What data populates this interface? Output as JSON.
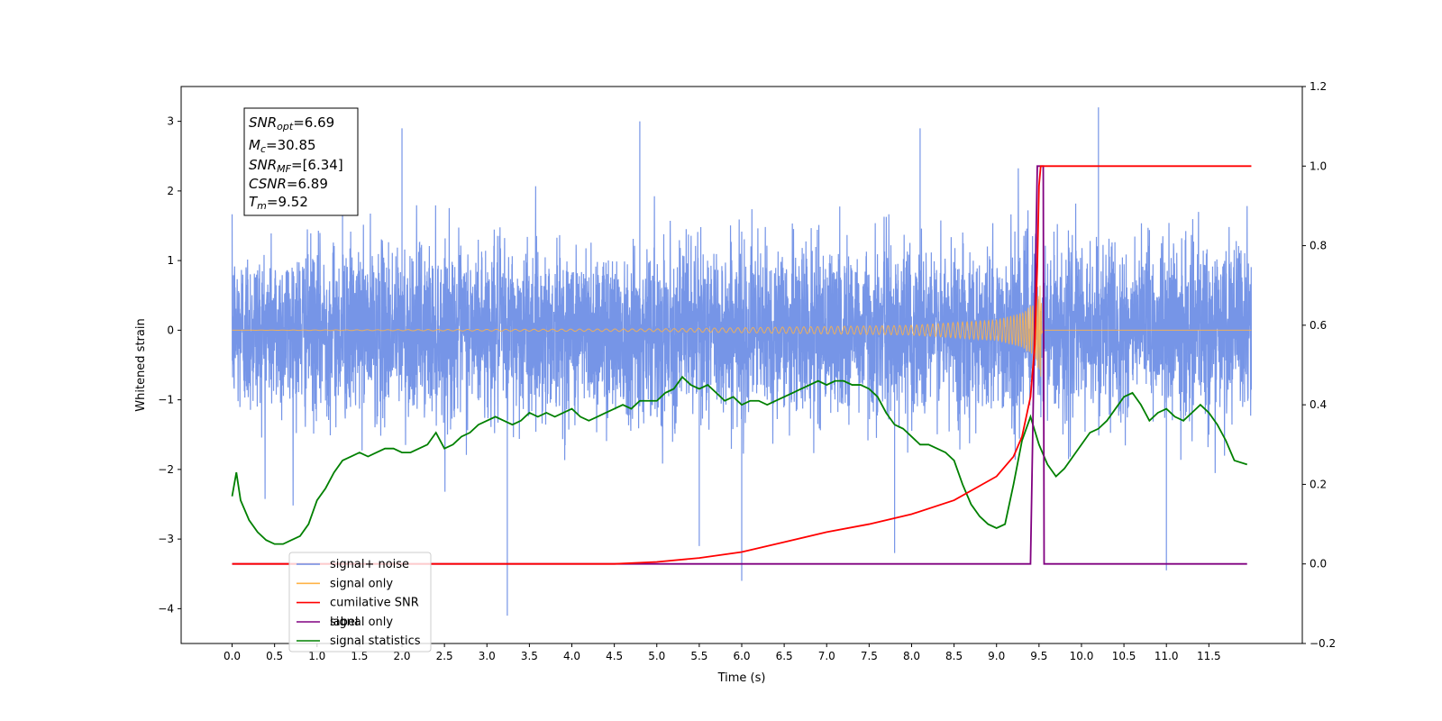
{
  "chart_data": {
    "type": "line",
    "xlabel": "Time (s)",
    "ylabel": "Whitened strain",
    "xlim": [
      -0.6,
      12.6
    ],
    "ylim": [
      -4.5,
      3.5
    ],
    "y2lim": [
      -0.2,
      1.2
    ],
    "x_ticks": [
      "0.0",
      "0.5",
      "1.0",
      "1.5",
      "2.0",
      "2.5",
      "3.0",
      "3.5",
      "4.0",
      "4.5",
      "5.0",
      "5.5",
      "6.0",
      "6.5",
      "7.0",
      "7.5",
      "8.0",
      "8.5",
      "9.0",
      "9.5",
      "10.0",
      "10.5",
      "11.0",
      "11.5"
    ],
    "y_ticks": [
      "3",
      "2",
      "1",
      "0",
      "−1",
      "−2",
      "−3",
      "−4"
    ],
    "y2_ticks": [
      "1.2",
      "1.0",
      "0.8",
      "0.6",
      "0.4",
      "0.2",
      "0.0",
      "−0.2"
    ],
    "legend_position": "lower-left",
    "series": [
      {
        "name": "signal+ noise",
        "color": "#6f8fe6",
        "axis": "left",
        "x_range": [
          0.0,
          12.0
        ],
        "typical_envelope": [
          -1.3,
          1.5
        ],
        "peaks": [
          3.2,
          -4.1
        ]
      },
      {
        "name": "signal only",
        "color": "#ffb347",
        "axis": "left",
        "x": [
          0.0,
          5.0,
          8.0,
          9.0,
          9.3,
          9.45,
          9.5,
          9.52,
          9.55,
          12.0
        ],
        "amplitude": [
          0.0,
          0.02,
          0.07,
          0.15,
          0.25,
          0.4,
          0.6,
          0.7,
          0.0,
          0.0
        ]
      },
      {
        "name": "cumilative SNR",
        "color": "#ff0000",
        "axis": "right",
        "x": [
          0.0,
          4.5,
          5.0,
          5.5,
          6.0,
          6.5,
          7.0,
          7.5,
          8.0,
          8.5,
          9.0,
          9.2,
          9.3,
          9.4,
          9.45,
          9.48,
          9.5,
          9.52,
          12.0
        ],
        "values": [
          0.0,
          0.0,
          0.005,
          0.015,
          0.03,
          0.055,
          0.08,
          0.1,
          0.125,
          0.16,
          0.22,
          0.27,
          0.32,
          0.42,
          0.55,
          0.75,
          0.95,
          1.0,
          1.0
        ]
      },
      {
        "name": "label",
        "color": "#800080",
        "axis": "right",
        "x": [
          0.0,
          9.4,
          9.48,
          9.55,
          9.56,
          11.95
        ],
        "values": [
          0.0,
          0.0,
          1.0,
          1.0,
          0.0,
          0.0
        ]
      },
      {
        "name": "signal only",
        "color": "#cccccc",
        "axis": "left",
        "hidden": true
      },
      {
        "name": "signal statistics",
        "color": "#008000",
        "axis": "right",
        "x": [
          0.0,
          0.05,
          0.1,
          0.2,
          0.3,
          0.4,
          0.5,
          0.6,
          0.7,
          0.8,
          0.9,
          1.0,
          1.1,
          1.2,
          1.3,
          1.4,
          1.5,
          1.6,
          1.7,
          1.8,
          1.9,
          2.0,
          2.1,
          2.2,
          2.3,
          2.4,
          2.5,
          2.6,
          2.7,
          2.8,
          2.9,
          3.0,
          3.1,
          3.2,
          3.3,
          3.4,
          3.5,
          3.6,
          3.7,
          3.8,
          3.9,
          4.0,
          4.1,
          4.2,
          4.3,
          4.4,
          4.5,
          4.6,
          4.7,
          4.8,
          4.9,
          5.0,
          5.1,
          5.2,
          5.3,
          5.4,
          5.5,
          5.6,
          5.7,
          5.8,
          5.9,
          6.0,
          6.1,
          6.2,
          6.3,
          6.4,
          6.5,
          6.6,
          6.7,
          6.8,
          6.9,
          7.0,
          7.1,
          7.2,
          7.3,
          7.4,
          7.5,
          7.6,
          7.7,
          7.8,
          7.9,
          8.0,
          8.1,
          8.2,
          8.3,
          8.4,
          8.5,
          8.6,
          8.7,
          8.8,
          8.9,
          9.0,
          9.1,
          9.2,
          9.3,
          9.4,
          9.5,
          9.6,
          9.7,
          9.8,
          9.9,
          10.0,
          10.1,
          10.2,
          10.3,
          10.4,
          10.5,
          10.6,
          10.7,
          10.8,
          10.9,
          11.0,
          11.1,
          11.2,
          11.3,
          11.4,
          11.5,
          11.6,
          11.7,
          11.8,
          11.95
        ],
        "values": [
          0.17,
          0.23,
          0.16,
          0.11,
          0.08,
          0.06,
          0.05,
          0.05,
          0.06,
          0.07,
          0.1,
          0.16,
          0.19,
          0.23,
          0.26,
          0.27,
          0.28,
          0.27,
          0.28,
          0.29,
          0.29,
          0.28,
          0.28,
          0.29,
          0.3,
          0.33,
          0.29,
          0.3,
          0.32,
          0.33,
          0.35,
          0.36,
          0.37,
          0.36,
          0.35,
          0.36,
          0.38,
          0.37,
          0.38,
          0.37,
          0.38,
          0.39,
          0.37,
          0.36,
          0.37,
          0.38,
          0.39,
          0.4,
          0.39,
          0.41,
          0.41,
          0.41,
          0.43,
          0.44,
          0.47,
          0.45,
          0.44,
          0.45,
          0.43,
          0.41,
          0.42,
          0.4,
          0.41,
          0.41,
          0.4,
          0.41,
          0.42,
          0.43,
          0.44,
          0.45,
          0.46,
          0.45,
          0.46,
          0.46,
          0.45,
          0.45,
          0.44,
          0.42,
          0.38,
          0.35,
          0.34,
          0.32,
          0.3,
          0.3,
          0.29,
          0.28,
          0.26,
          0.2,
          0.15,
          0.12,
          0.1,
          0.09,
          0.1,
          0.2,
          0.31,
          0.37,
          0.3,
          0.25,
          0.22,
          0.24,
          0.27,
          0.3,
          0.33,
          0.34,
          0.36,
          0.39,
          0.42,
          0.43,
          0.4,
          0.36,
          0.38,
          0.39,
          0.37,
          0.36,
          0.38,
          0.4,
          0.38,
          0.35,
          0.31,
          0.26,
          0.25
        ]
      }
    ]
  },
  "annotation": {
    "snr_opt": {
      "name": "SNR",
      "sub": "opt",
      "value": "=6.69"
    },
    "mc": {
      "name": "M",
      "sub": "c",
      "value": "=30.85"
    },
    "snr_mf": {
      "name": "SNR",
      "sub": "MF",
      "value": "=[6.34]"
    },
    "csnr": {
      "name": "CSNR",
      "sub": "",
      "value": "=6.89"
    },
    "tm": {
      "name": "T",
      "sub": "m",
      "value": "=9.52"
    }
  }
}
